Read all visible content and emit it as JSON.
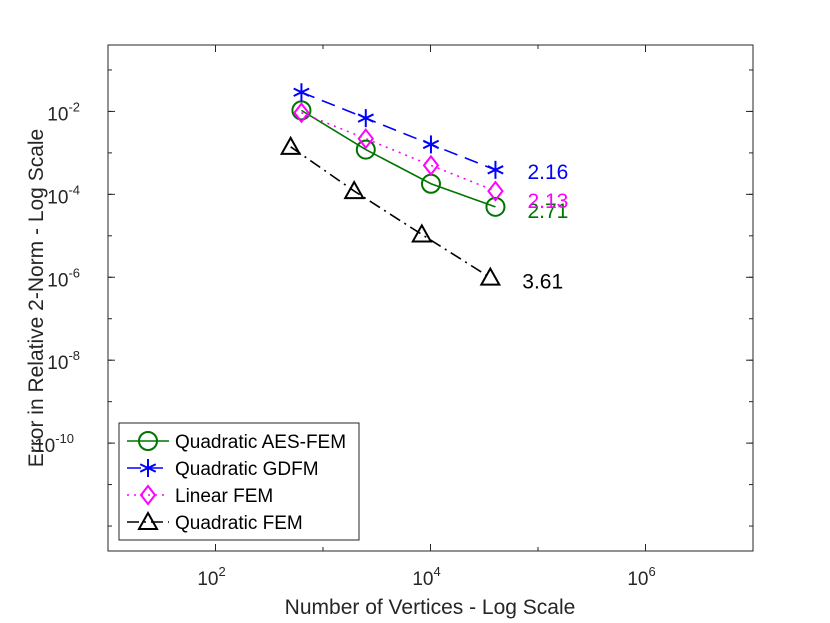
{
  "chart_data": {
    "type": "line",
    "title": "",
    "xlabel": "Number of Vertices - Log Scale",
    "ylabel": "Error in Relative 2-Norm - Log Scale",
    "x_scale": "log",
    "y_scale": "log",
    "xlim": [
      10,
      10000000
    ],
    "ylim": [
      2.5e-13,
      0.4
    ],
    "x_ticks": [
      {
        "value": 100,
        "base": "10",
        "exp": "2"
      },
      {
        "value": 10000,
        "base": "10",
        "exp": "4"
      },
      {
        "value": 1000000,
        "base": "10",
        "exp": "6"
      }
    ],
    "y_ticks": [
      {
        "value": 0.01,
        "base": "10",
        "exp": "-2"
      },
      {
        "value": 0.0001,
        "base": "10",
        "exp": "-4"
      },
      {
        "value": 1e-06,
        "base": "10",
        "exp": "-6"
      },
      {
        "value": 1e-08,
        "base": "10",
        "exp": "-8"
      },
      {
        "value": 1e-10,
        "base": "10",
        "exp": "-10"
      }
    ],
    "grid": false,
    "legend_position": "bottom-left",
    "series": [
      {
        "name": "Quadratic AES-FEM",
        "color": "#007500",
        "marker": "circle",
        "dash": "solid",
        "x": [
          630,
          2500,
          10100,
          40200
        ],
        "y": [
          0.0106,
          0.0012,
          0.00018,
          5e-05
        ],
        "rate_label": "2.71"
      },
      {
        "name": "Quadratic GDFM",
        "color": "#0000ff",
        "marker": "asterisk",
        "dash": "dashed",
        "x": [
          630,
          2500,
          10100,
          40200
        ],
        "y": [
          0.029,
          0.0069,
          0.0016,
          0.00039
        ],
        "rate_label": "2.16"
      },
      {
        "name": "Linear FEM",
        "color": "#ff00ff",
        "marker": "diamond",
        "dash": "dotted",
        "x": [
          630,
          2500,
          10100,
          40200
        ],
        "y": [
          0.0093,
          0.0022,
          0.0005,
          0.00012
        ],
        "rate_label": "2.13"
      },
      {
        "name": "Quadratic FEM",
        "color": "#000000",
        "marker": "triangle",
        "dash": "dashdot",
        "x": [
          500,
          1950,
          8300,
          36000
        ],
        "y": [
          0.0014,
          0.00012,
          1.08e-05,
          9.8e-07
        ],
        "rate_label": "3.61"
      }
    ]
  }
}
